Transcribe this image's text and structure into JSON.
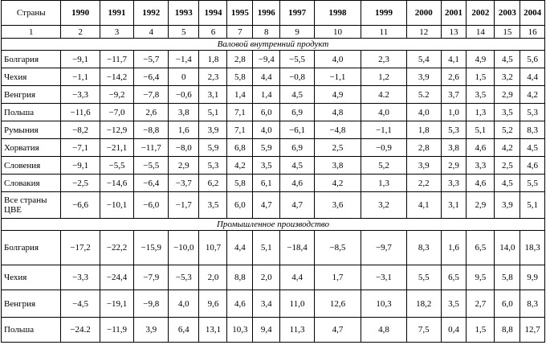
{
  "table": {
    "header_country": "Страны",
    "years": [
      "1990",
      "1991",
      "1992",
      "1993",
      "1994",
      "1995",
      "1996",
      "1997",
      "1998",
      "1999",
      "2000",
      "2001",
      "2002",
      "2003",
      "2004"
    ],
    "col_numbers": [
      "1",
      "2",
      "3",
      "4",
      "5",
      "6",
      "7",
      "8",
      "9",
      "10",
      "11",
      "12",
      "13",
      "14",
      "15",
      "16"
    ],
    "sections": [
      {
        "title": "Валовой внутренний продукт",
        "rows": [
          {
            "name": "Болгария",
            "values": [
              "−9,1",
              "−11,7",
              "−5,7",
              "−1,4",
              "1,8",
              "2,8",
              "−9,4",
              "−5,5",
              "4,0",
              "2,3",
              "5,4",
              "4,1",
              "4,9",
              "4,5",
              "5,6"
            ]
          },
          {
            "name": "Чехия",
            "values": [
              "−1,1",
              "−14,2",
              "−6,4",
              "0",
              "2,3",
              "5,8",
              "4,4",
              "−0,8",
              "−1,1",
              "1,2",
              "3,9",
              "2,6",
              "1,5",
              "3,2",
              "4,4"
            ]
          },
          {
            "name": "Венгрия",
            "values": [
              "−3,3",
              "−9,2",
              "−7,8",
              "−0,6",
              "3,1",
              "1,4",
              "1,4",
              "4,5",
              "4,9",
              "4.2",
              "5.2",
              "3,7",
              "3,5",
              "2,9",
              "4,2"
            ]
          },
          {
            "name": "Польша",
            "values": [
              "−11,6",
              "−7,0",
              "2,6",
              "3,8",
              "5,1",
              "7,1",
              "6,0",
              "6,9",
              "4,8",
              "4,0",
              "4,0",
              "1,0",
              "1,3",
              "3,5",
              "5,3"
            ]
          },
          {
            "name": "Румыния",
            "values": [
              "−8,2",
              "−12,9",
              "−8,8",
              "1,6",
              "3,9",
              "7,1",
              "4,0",
              "−6,1",
              "−4,8",
              "−1,1",
              "1,8",
              "5,3",
              "5,1",
              "5,2",
              "8,3"
            ]
          },
          {
            "name": "Хорватия",
            "values": [
              "−7,1",
              "−21,1",
              "−11,7",
              "−8,0",
              "5,9",
              "6,8",
              "5,9",
              "6,9",
              "2,5",
              "−0,9",
              "2,8",
              "3,8",
              "4,6",
              "4,2",
              "4,5"
            ]
          },
          {
            "name": "Словения",
            "values": [
              "−9,1",
              "−5,5",
              "−5,5",
              "2,9",
              "5,3",
              "4,2",
              "3,5",
              "4,5",
              "3,8",
              "5,2",
              "3,9",
              "2,9",
              "3,3",
              "2,5",
              "4,6"
            ]
          },
          {
            "name": "Словакия",
            "values": [
              "−2,5",
              "−14,6",
              "−6,4",
              "−3,7",
              "6,2",
              "5,8",
              "6,1",
              "4,6",
              "4,2",
              "1,3",
              "2,2",
              "3,3",
              "4,6",
              "4,5",
              "5,5"
            ]
          },
          {
            "name": "Все страны ЦВЕ",
            "values": [
              "−6,6",
              "−10,1",
              "−6,0",
              "−1,7",
              "3,5",
              "6,0",
              "4,7",
              "4,7",
              "3,6",
              "3,2",
              "4,1",
              "3,1",
              "2,9",
              "3,9",
              "5,1"
            ]
          }
        ]
      },
      {
        "title": "Промышленное производство",
        "rows": [
          {
            "name": "Болгария",
            "values": [
              "−17,2",
              "−22,2",
              "−15,9",
              "−10,0",
              "10,7",
              "4,4",
              "5,1",
              "−18,4",
              "−8,5",
              "−9,7",
              "8,3",
              "1,6",
              "6,5",
              "14,0",
              "18,3"
            ]
          },
          {
            "name": "Чехия",
            "values": [
              "−3,3",
              "−24,4",
              "−7,9",
              "−5,3",
              "2,0",
              "8,8",
              "2,0",
              "4,4",
              "1,7",
              "−3,1",
              "5,5",
              "6,5",
              "9,5",
              "5,8",
              "9,9"
            ]
          },
          {
            "name": "Венгрия",
            "values": [
              "−4,5",
              "−19,1",
              "−9,8",
              "4,0",
              "9,6",
              "4,6",
              "3,4",
              "11,0",
              "12,6",
              "10,3",
              "18,2",
              "3,5",
              "2,7",
              "6,0",
              "8,3"
            ]
          },
          {
            "name": "Польша",
            "values": [
              "−24.2",
              "−11,9",
              "3,9",
              "6,4",
              "13,1",
              "10,3",
              "9,4",
              "11,3",
              "4,7",
              "4,8",
              "7,5",
              "0,4",
              "1,5",
              "8,8",
              "12,7"
            ]
          }
        ]
      }
    ]
  }
}
